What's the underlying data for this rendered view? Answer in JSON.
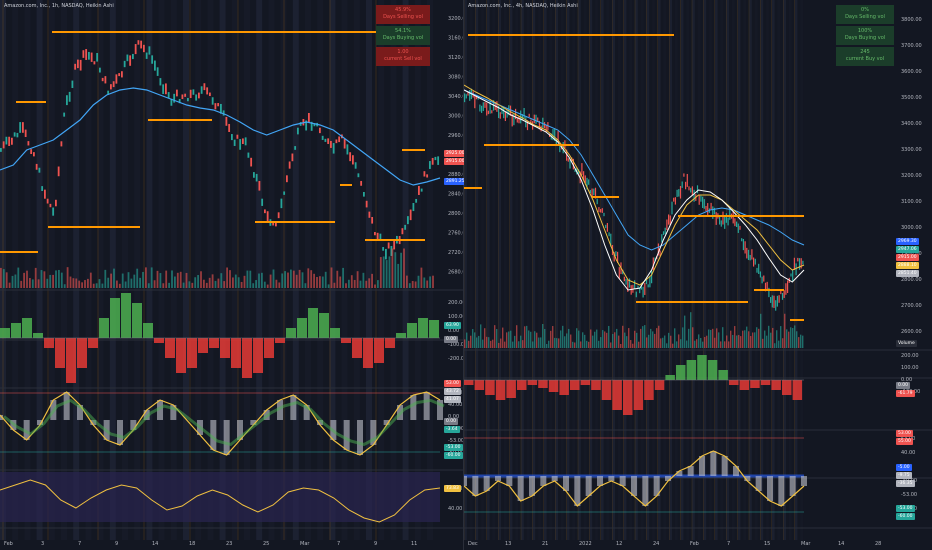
{
  "left_chart": {
    "title": "Amazon.com, Inc., 1h, NASDAQ, Heikin Ashi",
    "stats": [
      {
        "value": "45.9%",
        "label": "Days Selling vol",
        "bg": "#7a1b1b",
        "fg": "#ef5350"
      },
      {
        "value": "54.1%",
        "label": "Days Buying vol",
        "bg": "#1b3d2a",
        "fg": "#66bb6a"
      },
      {
        "value": "1.00",
        "label": "current Sell vol",
        "bg": "#7a1b1b",
        "fg": "#ef5350"
      }
    ],
    "price_axis": [
      "3200.00",
      "3160.00",
      "3120.00",
      "3080.00",
      "3040.00",
      "3000.00",
      "2960.00",
      "2920.00",
      "2880.00",
      "2840.00",
      "2800.00",
      "2760.00",
      "2720.00",
      "2680.00"
    ],
    "price_tags": [
      {
        "text": "2925.00",
        "color": "#ef5350"
      },
      {
        "text": "2915.00",
        "color": "#ef5350"
      },
      {
        "text": "2891.25",
        "color": "#2962ff"
      }
    ],
    "osc1_axis": [
      "200.00",
      "100.00",
      "0.00",
      "-100.00",
      "-200.00"
    ],
    "osc1_tags": [
      {
        "text": "63.90",
        "color": "#26a69a"
      },
      {
        "text": "0.00",
        "color": "#787b86"
      }
    ],
    "osc2_axis": [
      "53.00",
      "40.00",
      "0.00",
      "-40.00",
      "-53.00",
      "-60.00"
    ],
    "osc2_tags": [
      {
        "text": "53.00",
        "color": "#ef5350"
      },
      {
        "text": "43.72",
        "color": "#b2b5be"
      },
      {
        "text": "41.07",
        "color": "#b2b5be"
      },
      {
        "text": "0.00",
        "color": "#787b86"
      },
      {
        "text": "-3.64",
        "color": "#26a69a"
      },
      {
        "text": "-53.00",
        "color": "#26a69a"
      },
      {
        "text": "-60.00",
        "color": "#26a69a"
      }
    ],
    "osc3_axis": [
      "80.00",
      "40.00"
    ],
    "osc3_tags": [
      {
        "text": "73.83",
        "color": "#f0c040"
      }
    ],
    "time_axis": [
      "Feb",
      "3",
      "7",
      "9",
      "14",
      "18",
      "23",
      "25",
      "Mar",
      "7",
      "9",
      "11"
    ]
  },
  "right_chart": {
    "title": "Amazon.com, Inc., 4h, NASDAQ, Heikin Ashi",
    "stats": [
      {
        "value": "0%",
        "label": "Days Selling vol",
        "bg": "#1b3d2a",
        "fg": "#66bb6a"
      },
      {
        "value": "100%",
        "label": "Days Buying vol",
        "bg": "#1b3d2a",
        "fg": "#66bb6a"
      },
      {
        "value": "245",
        "label": "current Buy vol",
        "bg": "#1b3d2a",
        "fg": "#66bb6a"
      }
    ],
    "price_axis": [
      "3800.00",
      "3700.00",
      "3600.00",
      "3500.00",
      "3400.00",
      "3300.00",
      "3200.00",
      "3100.00",
      "3000.00",
      "2900.00",
      "2800.00",
      "2700.00",
      "2600.00"
    ],
    "price_tags": [
      {
        "text": "2969.30",
        "color": "#2962ff"
      },
      {
        "text": "2947.06",
        "color": "#26a69a"
      },
      {
        "text": "2915.00",
        "color": "#ef5350"
      },
      {
        "text": "2888.10",
        "color": "#f0c040"
      },
      {
        "text": "2851.40",
        "color": "#b2b5be"
      }
    ],
    "volume_tag": "Volume",
    "osc1_axis": [
      "200.00",
      "100.00",
      "0.00",
      "-100.00"
    ],
    "osc1_tags": [
      {
        "text": "0.00",
        "color": "#787b86"
      },
      {
        "text": "-61.79",
        "color": "#ef5350"
      }
    ],
    "osc2_axis": [
      "53.00",
      "40.00",
      "0.00",
      "-40.00",
      "-53.00",
      "-60.00"
    ],
    "osc2_tags": [
      {
        "text": "53.00",
        "color": "#ef5350"
      },
      {
        "text": "55.00",
        "color": "#ef5350"
      },
      {
        "text": "-5.00",
        "color": "#2962ff"
      },
      {
        "text": "-9.75",
        "color": "#b2b5be"
      },
      {
        "text": "-36.35",
        "color": "#b2b5be"
      },
      {
        "text": "-53.00",
        "color": "#26a69a"
      },
      {
        "text": "-60.00",
        "color": "#26a69a"
      }
    ],
    "time_axis": [
      "Dec",
      "13",
      "21",
      "2022",
      "12",
      "24",
      "Feb",
      "7",
      "15",
      "Mar",
      "14",
      "28"
    ]
  }
}
